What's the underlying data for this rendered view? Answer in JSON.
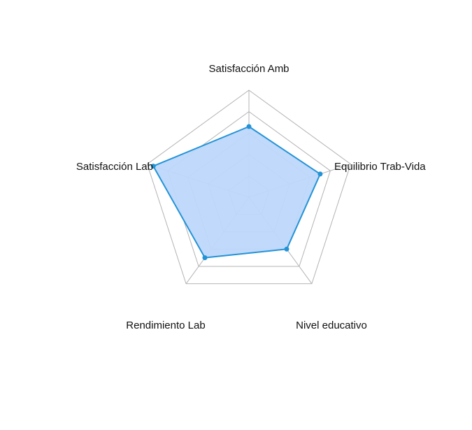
{
  "colors": {
    "fill": "#bed7fb",
    "line": "#2393d6",
    "grid": "#b3b3b3"
  },
  "chart_data": {
    "type": "radar",
    "axes": [
      "Satisfacción Amb",
      "Equilibrio Trab-Vida",
      "Nivel educativo",
      "Rendimiento Lab",
      "Satisfacción Lab"
    ],
    "values": [
      3.3,
      3.5,
      3.0,
      3.5,
      4.7
    ],
    "range": [
      0,
      5
    ],
    "grid_levels": 5,
    "grid": true,
    "legend": false
  }
}
